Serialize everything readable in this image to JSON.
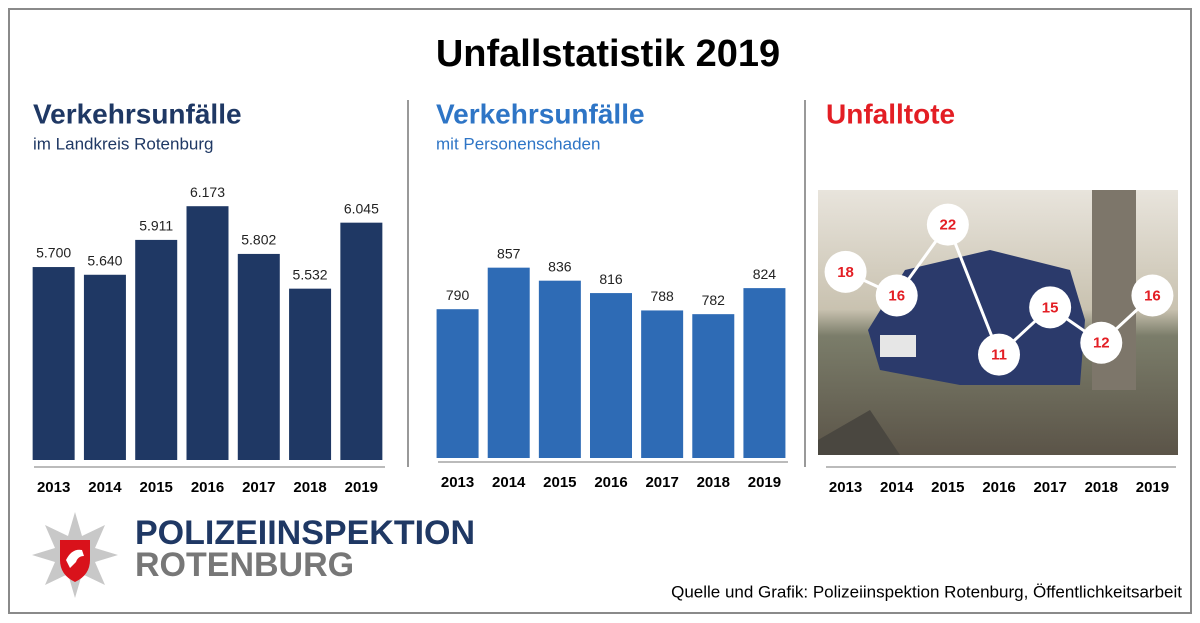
{
  "title": "Unfallstatistik 2019",
  "chart_data": [
    {
      "type": "bar",
      "title": "Verkehrsunfälle",
      "subtitle": "im Landkreis Rotenburg",
      "categories": [
        "2013",
        "2014",
        "2015",
        "2016",
        "2017",
        "2018",
        "2019"
      ],
      "values": [
        5700,
        5640,
        5911,
        6173,
        5802,
        5532,
        6045
      ],
      "value_labels": [
        "5.700",
        "5.640",
        "5.911",
        "6.173",
        "5.802",
        "5.532",
        "6.045"
      ],
      "color": "#1f3864",
      "ylim": [
        4200,
        6400
      ]
    },
    {
      "type": "bar",
      "title": "Verkehrsunfälle",
      "subtitle": "mit Personenschaden",
      "categories": [
        "2013",
        "2014",
        "2015",
        "2016",
        "2017",
        "2018",
        "2019"
      ],
      "values": [
        790,
        857,
        836,
        816,
        788,
        782,
        824
      ],
      "color": "#2e6bb5",
      "ylim": [
        550,
        900
      ]
    },
    {
      "type": "line",
      "title": "Unfalltote",
      "categories": [
        "2013",
        "2014",
        "2015",
        "2016",
        "2017",
        "2018",
        "2019"
      ],
      "values": [
        18,
        16,
        22,
        11,
        15,
        12,
        16
      ],
      "color": "#e31e24",
      "ylim": [
        8,
        24
      ]
    }
  ],
  "logo": {
    "line1": "POLIZEIINSPEKTION",
    "line2": "ROTENBURG"
  },
  "source": "Quelle und Grafik: Polizeiinspektion Rotenburg, Öffentlichkeitsarbeit"
}
